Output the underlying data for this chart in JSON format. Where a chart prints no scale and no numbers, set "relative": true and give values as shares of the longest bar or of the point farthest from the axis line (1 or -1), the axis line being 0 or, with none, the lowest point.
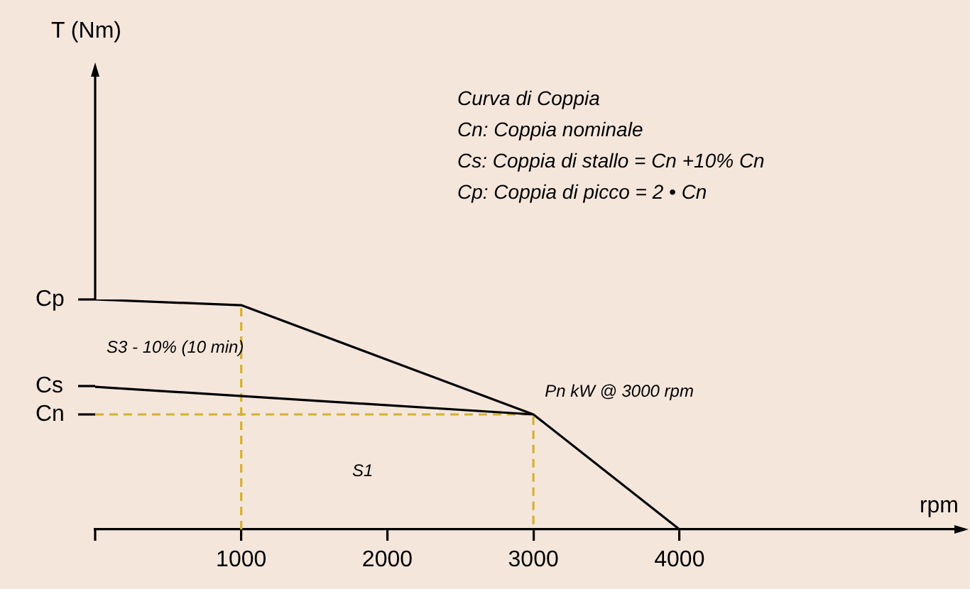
{
  "chart_data": {
    "type": "line",
    "xlabel": "rpm",
    "relative": true,
    "series": [
      {
        "color": "#000000",
        "x": [
          0,
          1000,
          3000,
          4000
        ],
        "values": [
          1,
          0.975,
          0.5,
          0
        ]
      },
      {
        "color": "#000000",
        "x": [
          0,
          3000
        ],
        "values": [
          0.62,
          0.5
        ]
      },
      {
        "color": "#d4b030",
        "line_style": "dashed",
        "x": [
          0,
          3000,
          3000
        ],
        "values": [
          0.5,
          0.5,
          0
        ]
      },
      {
        "color": "#d4b030",
        "line_style": "dashed",
        "x": [
          1000,
          1000
        ],
        "values": [
          0,
          0.975
        ]
      }
    ],
    "xlim": [
      0,
      5950
    ],
    "xticks": [
      1000,
      2000,
      3000,
      4000
    ],
    "marker": "none",
    "line_style": "solid",
    "grid": false,
    "legend": false,
    "annotations": [
      "T (Nm)",
      "Curva di Coppia",
      "Cn: Coppia nominale",
      "Cs: Coppia di stallo = Cn +10% Cn",
      "Cp: Coppia di picco = 2 • Cn",
      "S3 - 10% (10 min)",
      "S1",
      {
        "text": "Pn kW @ 3000 rpm",
        "x": 3000,
        "y": 0.5
      },
      "Cp",
      "Cs",
      "Cn"
    ]
  }
}
